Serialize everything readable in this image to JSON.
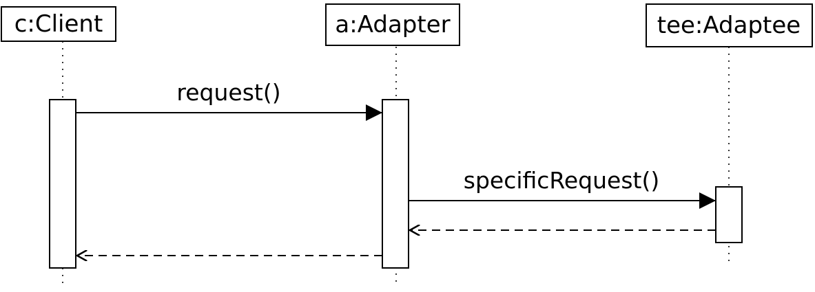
{
  "diagram": {
    "type": "sequence",
    "participants": [
      {
        "id": "client",
        "label": "c:Client"
      },
      {
        "id": "adapter",
        "label": "a:Adapter"
      },
      {
        "id": "adaptee",
        "label": "tee:Adaptee"
      }
    ],
    "messages": [
      {
        "id": "request",
        "from": "client",
        "to": "adapter",
        "label": "request()",
        "kind": "call"
      },
      {
        "id": "specific-request",
        "from": "adapter",
        "to": "adaptee",
        "label": "specificRequest()",
        "kind": "call"
      },
      {
        "id": "return-specific",
        "from": "adaptee",
        "to": "adapter",
        "label": "",
        "kind": "return"
      },
      {
        "id": "return-request",
        "from": "adapter",
        "to": "client",
        "label": "",
        "kind": "return"
      }
    ]
  }
}
